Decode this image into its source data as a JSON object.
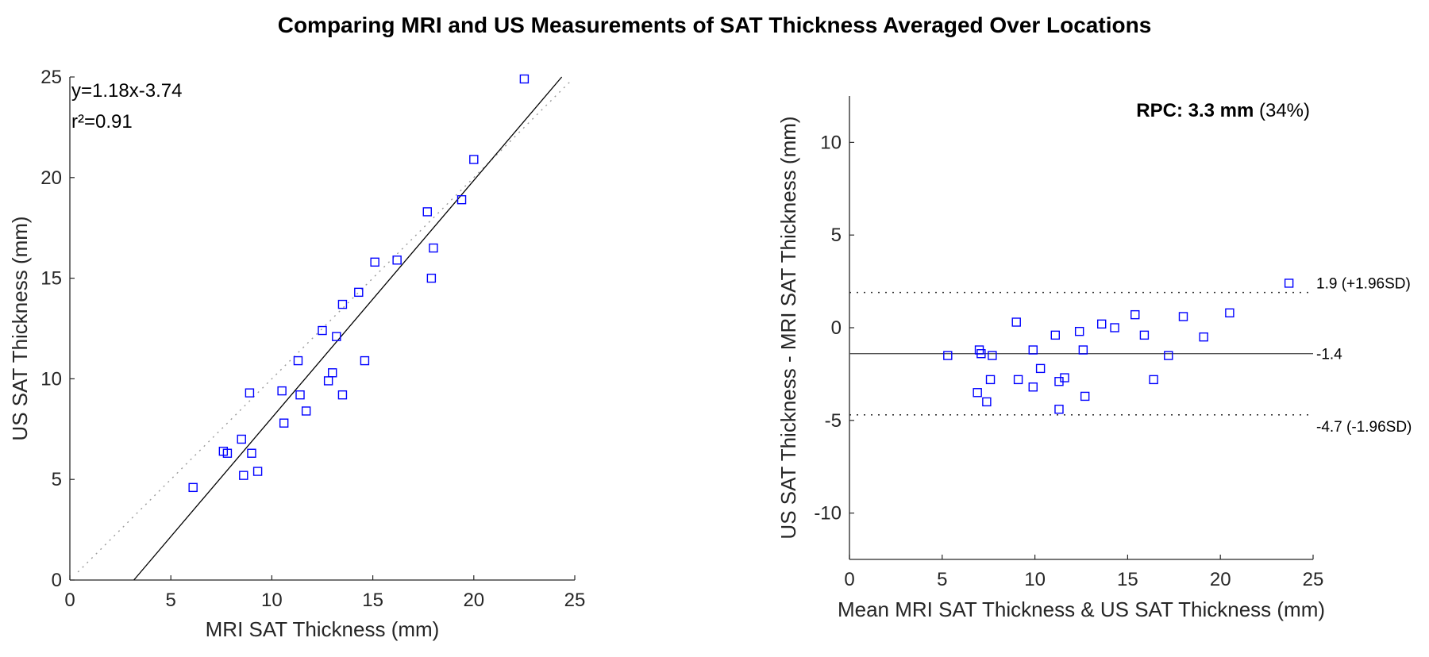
{
  "title": "Comparing MRI and US Measurements of SAT Thickness Averaged Over Locations",
  "chart_data": [
    {
      "type": "scatter",
      "name": "correlation",
      "xlabel": "MRI SAT Thickness (mm)",
      "ylabel": "US SAT Thickness (mm)",
      "xlim": [
        0,
        25
      ],
      "ylim": [
        0,
        25
      ],
      "xticks": [
        0,
        5,
        10,
        15,
        20,
        25
      ],
      "yticks": [
        0,
        5,
        10,
        15,
        20,
        25
      ],
      "equation_text": "y=1.18x-3.74",
      "r2_text": "r²=0.91",
      "fit_line": {
        "slope": 1.18,
        "intercept": -3.74
      },
      "identity_line": {
        "slope": 1,
        "intercept": 0
      },
      "points": [
        {
          "x": 6.1,
          "y": 4.6
        },
        {
          "x": 7.6,
          "y": 6.4
        },
        {
          "x": 7.8,
          "y": 6.3
        },
        {
          "x": 8.5,
          "y": 7.0
        },
        {
          "x": 8.6,
          "y": 5.2
        },
        {
          "x": 8.9,
          "y": 9.3
        },
        {
          "x": 9.0,
          "y": 6.3
        },
        {
          "x": 9.3,
          "y": 5.4
        },
        {
          "x": 10.5,
          "y": 9.4
        },
        {
          "x": 10.6,
          "y": 7.8
        },
        {
          "x": 11.3,
          "y": 10.9
        },
        {
          "x": 11.4,
          "y": 9.2
        },
        {
          "x": 11.7,
          "y": 8.4
        },
        {
          "x": 12.5,
          "y": 12.4
        },
        {
          "x": 12.8,
          "y": 9.9
        },
        {
          "x": 13.0,
          "y": 10.3
        },
        {
          "x": 13.2,
          "y": 12.1
        },
        {
          "x": 13.5,
          "y": 9.2
        },
        {
          "x": 13.5,
          "y": 13.7
        },
        {
          "x": 14.3,
          "y": 14.3
        },
        {
          "x": 14.6,
          "y": 10.9
        },
        {
          "x": 15.1,
          "y": 15.8
        },
        {
          "x": 16.2,
          "y": 15.9
        },
        {
          "x": 17.7,
          "y": 18.3
        },
        {
          "x": 17.9,
          "y": 15.0
        },
        {
          "x": 18.0,
          "y": 16.5
        },
        {
          "x": 19.4,
          "y": 18.9
        },
        {
          "x": 20.0,
          "y": 20.9
        },
        {
          "x": 22.5,
          "y": 24.9
        }
      ]
    },
    {
      "type": "scatter",
      "name": "bland-altman",
      "xlabel": "Mean MRI SAT Thickness & US SAT Thickness (mm)",
      "ylabel": "US SAT Thickness - MRI SAT Thickness (mm)",
      "xlim": [
        0,
        25
      ],
      "ylim": [
        -12.5,
        12.5
      ],
      "xticks": [
        0,
        5,
        10,
        15,
        20,
        25
      ],
      "yticks": [
        -10,
        -5,
        0,
        5,
        10
      ],
      "rpc_bold": "RPC: 3.3 mm",
      "rpc_pct": "(34%)",
      "mean_line": {
        "value": -1.4,
        "label": "-1.4"
      },
      "upper_loa": {
        "value": 1.9,
        "label": "1.9 (+1.96SD)"
      },
      "lower_loa": {
        "value": -4.7,
        "label": "-4.7 (-1.96SD)"
      },
      "points": [
        {
          "x": 5.3,
          "y": -1.5
        },
        {
          "x": 6.9,
          "y": -3.5
        },
        {
          "x": 7.0,
          "y": -1.2
        },
        {
          "x": 7.1,
          "y": -1.4
        },
        {
          "x": 7.4,
          "y": -4.0
        },
        {
          "x": 7.6,
          "y": -2.8
        },
        {
          "x": 7.7,
          "y": -1.5
        },
        {
          "x": 9.0,
          "y": 0.3
        },
        {
          "x": 9.1,
          "y": -2.8
        },
        {
          "x": 9.9,
          "y": -1.2
        },
        {
          "x": 9.9,
          "y": -3.2
        },
        {
          "x": 10.3,
          "y": -2.2
        },
        {
          "x": 11.1,
          "y": -0.4
        },
        {
          "x": 11.3,
          "y": -2.9
        },
        {
          "x": 11.3,
          "y": -4.4
        },
        {
          "x": 11.6,
          "y": -2.7
        },
        {
          "x": 12.4,
          "y": -0.2
        },
        {
          "x": 12.6,
          "y": -1.2
        },
        {
          "x": 12.7,
          "y": -3.7
        },
        {
          "x": 13.6,
          "y": 0.2
        },
        {
          "x": 14.3,
          "y": 0.0
        },
        {
          "x": 15.4,
          "y": 0.7
        },
        {
          "x": 15.9,
          "y": -0.4
        },
        {
          "x": 16.4,
          "y": -2.8
        },
        {
          "x": 17.2,
          "y": -1.5
        },
        {
          "x": 18.0,
          "y": 0.6
        },
        {
          "x": 19.1,
          "y": -0.5
        },
        {
          "x": 20.5,
          "y": 0.8
        },
        {
          "x": 23.7,
          "y": 2.4
        }
      ]
    }
  ]
}
